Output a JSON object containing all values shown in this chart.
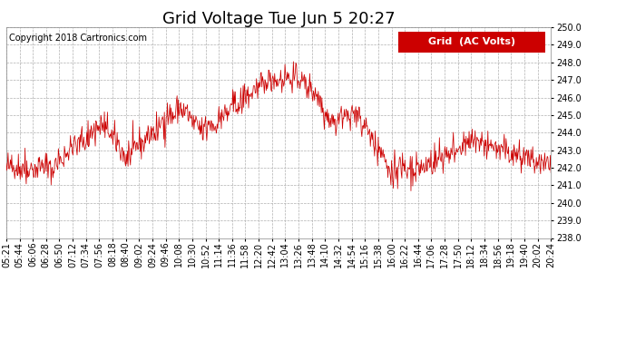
{
  "title": "Grid Voltage Tue Jun 5 20:27",
  "copyright": "Copyright 2018 Cartronics.com",
  "legend_label": "Grid  (AC Volts)",
  "line_color": "#cc0000",
  "background_color": "#ffffff",
  "grid_color": "#b0b0b0",
  "ylim": [
    238.0,
    250.0
  ],
  "yticks": [
    238.0,
    239.0,
    240.0,
    241.0,
    242.0,
    243.0,
    244.0,
    245.0,
    246.0,
    247.0,
    248.0,
    249.0,
    250.0
  ],
  "xtick_labels": [
    "05:21",
    "05:44",
    "06:06",
    "06:28",
    "06:50",
    "07:12",
    "07:34",
    "07:56",
    "08:18",
    "08:40",
    "09:02",
    "09:24",
    "09:46",
    "10:08",
    "10:30",
    "10:52",
    "11:14",
    "11:36",
    "11:58",
    "12:20",
    "12:42",
    "13:04",
    "13:26",
    "13:48",
    "14:10",
    "14:32",
    "14:54",
    "15:16",
    "15:38",
    "16:00",
    "16:22",
    "16:44",
    "17:06",
    "17:28",
    "17:50",
    "18:12",
    "18:34",
    "18:56",
    "19:18",
    "19:40",
    "20:02",
    "20:24"
  ],
  "seed": 42,
  "n_points": 900,
  "title_fontsize": 13,
  "copyright_fontsize": 7,
  "tick_fontsize": 7,
  "legend_fontsize": 8
}
